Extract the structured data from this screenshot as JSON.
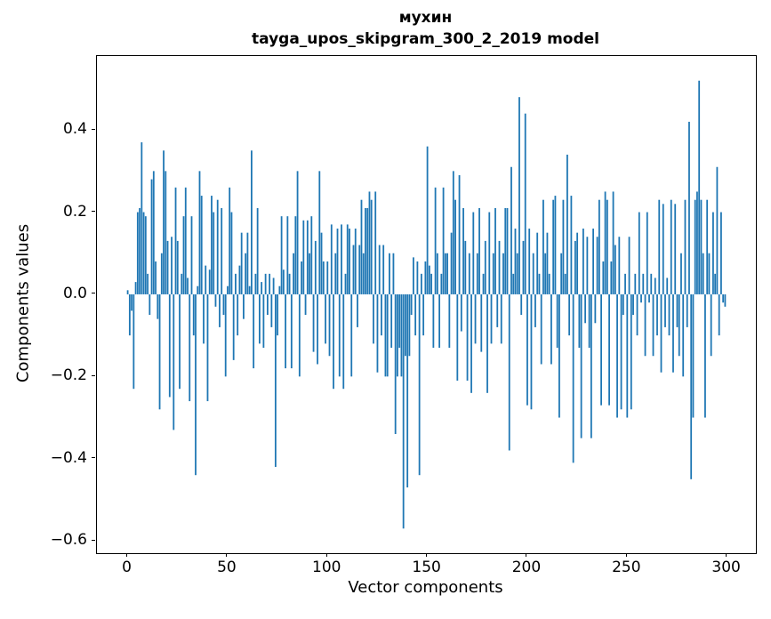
{
  "figure": {
    "title_line1": "мухин",
    "title_line2": "tayga_upos_skipgram_300_2_2019 model",
    "xlabel": "Vector components",
    "ylabel": "Components values"
  },
  "chart_data": {
    "type": "bar",
    "title": "мухин\ntayga_upos_skipgram_300_2_2019 model",
    "xlabel": "Vector components",
    "ylabel": "Components values",
    "bar_color": "#1f77b4",
    "grid": false,
    "legend": null,
    "x_start": 0,
    "n_components": 300,
    "xlim": [
      -15.4,
      314.4
    ],
    "ylim": [
      -0.63,
      0.58
    ],
    "xticks": [
      0,
      50,
      100,
      150,
      200,
      250,
      300
    ],
    "xtick_labels": [
      "0",
      "50",
      "100",
      "150",
      "200",
      "250",
      "300"
    ],
    "yticks": [
      0.4,
      0.2,
      0.0,
      -0.2,
      -0.4,
      -0.6
    ],
    "ytick_labels": [
      "0.4",
      "0.2",
      "0.0",
      "−0.2",
      "−0.4",
      "−0.6"
    ],
    "values": [
      0.01,
      -0.1,
      -0.04,
      -0.23,
      0.03,
      0.2,
      0.21,
      0.37,
      0.2,
      0.19,
      0.05,
      -0.05,
      0.28,
      0.3,
      0.08,
      -0.06,
      -0.28,
      0.1,
      0.35,
      0.3,
      0.13,
      -0.25,
      0.14,
      -0.33,
      0.26,
      0.13,
      -0.23,
      0.05,
      0.19,
      0.26,
      0.04,
      -0.26,
      0.19,
      -0.1,
      -0.44,
      0.02,
      0.3,
      0.24,
      -0.12,
      0.07,
      -0.26,
      0.06,
      0.24,
      0.2,
      -0.03,
      0.23,
      -0.08,
      0.21,
      -0.05,
      -0.2,
      0.02,
      0.26,
      0.2,
      -0.16,
      0.05,
      -0.1,
      0.07,
      0.15,
      -0.06,
      0.1,
      0.15,
      0.02,
      0.35,
      -0.18,
      0.05,
      0.21,
      -0.12,
      0.03,
      -0.13,
      0.05,
      -0.05,
      0.05,
      -0.08,
      0.04,
      -0.42,
      -0.1,
      0.02,
      0.19,
      0.06,
      -0.18,
      0.19,
      0.05,
      -0.18,
      0.1,
      0.19,
      0.3,
      -0.2,
      0.08,
      0.18,
      -0.05,
      0.18,
      0.1,
      0.19,
      -0.14,
      0.13,
      -0.17,
      0.3,
      0.15,
      0.08,
      -0.12,
      0.08,
      -0.15,
      0.17,
      -0.23,
      0.1,
      0.16,
      -0.2,
      0.17,
      -0.23,
      0.05,
      0.17,
      0.16,
      -0.2,
      0.12,
      0.16,
      -0.08,
      0.12,
      0.23,
      0.1,
      0.21,
      0.21,
      0.25,
      0.23,
      -0.12,
      0.25,
      -0.19,
      0.12,
      -0.1,
      0.12,
      -0.2,
      -0.2,
      0.1,
      -0.13,
      0.1,
      -0.34,
      -0.2,
      -0.13,
      -0.2,
      -0.57,
      -0.15,
      -0.47,
      -0.15,
      -0.05,
      0.09,
      -0.1,
      0.08,
      -0.44,
      0.05,
      -0.1,
      0.08,
      0.36,
      0.07,
      0.05,
      -0.13,
      0.26,
      0.1,
      -0.13,
      0.05,
      0.26,
      0.1,
      0.1,
      -0.13,
      0.15,
      0.3,
      0.23,
      -0.21,
      0.29,
      -0.09,
      0.21,
      0.13,
      -0.21,
      0.1,
      -0.24,
      0.2,
      -0.12,
      0.1,
      0.21,
      -0.14,
      0.05,
      0.13,
      -0.24,
      0.2,
      -0.12,
      0.1,
      0.21,
      -0.08,
      0.13,
      -0.12,
      0.1,
      0.21,
      0.21,
      -0.38,
      0.31,
      0.05,
      0.16,
      0.1,
      0.48,
      -0.05,
      0.13,
      0.44,
      -0.27,
      0.16,
      -0.28,
      0.1,
      -0.08,
      0.15,
      0.05,
      -0.17,
      0.23,
      0.1,
      0.15,
      0.05,
      -0.17,
      0.23,
      0.24,
      -0.13,
      -0.3,
      0.1,
      0.23,
      0.05,
      0.34,
      -0.1,
      0.24,
      -0.41,
      0.13,
      0.15,
      -0.13,
      -0.35,
      0.16,
      -0.07,
      0.14,
      -0.13,
      -0.35,
      0.16,
      -0.07,
      0.14,
      0.23,
      -0.27,
      0.08,
      0.25,
      0.23,
      -0.27,
      0.08,
      0.25,
      0.12,
      -0.3,
      0.14,
      -0.28,
      -0.05,
      0.05,
      -0.3,
      0.14,
      -0.28,
      -0.05,
      0.05,
      -0.1,
      0.2,
      -0.02,
      0.05,
      -0.15,
      0.2,
      -0.02,
      0.05,
      -0.15,
      0.04,
      -0.1,
      0.23,
      -0.19,
      0.22,
      -0.08,
      0.04,
      -0.1,
      0.23,
      -0.19,
      0.22,
      -0.08,
      -0.15,
      0.1,
      -0.2,
      0.23,
      -0.08,
      0.42,
      -0.45,
      -0.3,
      0.23,
      0.25,
      0.52,
      0.23,
      0.1,
      -0.3,
      0.23,
      0.1,
      -0.15,
      0.2,
      0.05,
      0.31,
      -0.1,
      0.2,
      -0.02,
      -0.03
    ]
  }
}
